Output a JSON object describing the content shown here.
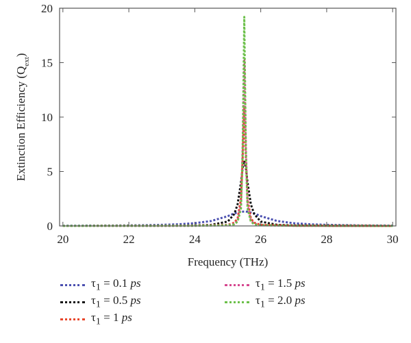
{
  "chart_data": {
    "type": "line",
    "title": "",
    "xlabel": "Frequency (THz)",
    "ylabel": "Extinction Efficiency (Q",
    "ylabel_sub": "ext",
    "ylabel_close": ")",
    "xlim": [
      19.9,
      30.1
    ],
    "ylim": [
      0,
      20
    ],
    "xticks": [
      20,
      22,
      24,
      26,
      28,
      30
    ],
    "yticks": [
      0,
      5,
      10,
      15,
      20
    ],
    "grid": false,
    "legend_position": "bottom",
    "line_style": "dotted",
    "series": [
      {
        "name": "τ1 = 0.1 ps",
        "label_prefix": "τ",
        "label_sub": "1",
        "label_value": " = 0.1 ",
        "label_unit": "ps",
        "color": "#4a4fb0",
        "x": [
          20,
          21,
          22,
          22.5,
          23,
          23.5,
          24,
          24.5,
          25,
          25.2,
          25.4,
          25.5,
          25.6,
          25.8,
          26,
          26.5,
          27,
          27.5,
          28,
          29,
          30
        ],
        "y": [
          0.02,
          0.03,
          0.05,
          0.07,
          0.1,
          0.15,
          0.25,
          0.45,
          0.9,
          1.15,
          1.3,
          1.32,
          1.3,
          1.15,
          0.9,
          0.45,
          0.25,
          0.15,
          0.1,
          0.05,
          0.03
        ]
      },
      {
        "name": "τ1 = 0.5 ps",
        "label_prefix": "τ",
        "label_sub": "1",
        "label_value": " = 0.5 ",
        "label_unit": "ps",
        "color": "#111111",
        "x": [
          20,
          22,
          23,
          24,
          24.5,
          25,
          25.2,
          25.3,
          25.4,
          25.45,
          25.5,
          25.55,
          25.6,
          25.7,
          25.8,
          26,
          26.5,
          27,
          28,
          30
        ],
        "y": [
          0,
          0.01,
          0.02,
          0.05,
          0.1,
          0.4,
          1.1,
          2.0,
          4.0,
          5.3,
          6.0,
          5.3,
          4.0,
          2.0,
          1.1,
          0.4,
          0.1,
          0.05,
          0.02,
          0
        ]
      },
      {
        "name": "τ1 = 1 ps",
        "label_prefix": "τ",
        "label_sub": "1",
        "label_value": " = 1 ",
        "label_unit": "ps",
        "color": "#e8452a",
        "x": [
          20,
          23,
          24,
          25,
          25.2,
          25.3,
          25.4,
          25.45,
          25.5,
          25.55,
          25.6,
          25.7,
          25.8,
          26,
          27,
          30
        ],
        "y": [
          0,
          0.01,
          0.03,
          0.1,
          0.3,
          0.7,
          2.5,
          6.0,
          10.8,
          6.0,
          2.5,
          0.7,
          0.3,
          0.1,
          0.02,
          0
        ]
      },
      {
        "name": "τ1 = 1.5 ps",
        "label_prefix": "τ",
        "label_sub": "1",
        "label_value": " = 1.5 ",
        "label_unit": "ps",
        "color": "#d6478f",
        "x": [
          20,
          23,
          24,
          25,
          25.2,
          25.3,
          25.4,
          25.45,
          25.5,
          25.55,
          25.6,
          25.7,
          25.8,
          26,
          27,
          30
        ],
        "y": [
          0,
          0.01,
          0.02,
          0.08,
          0.2,
          0.5,
          2.0,
          7.0,
          15.3,
          7.0,
          2.0,
          0.5,
          0.2,
          0.08,
          0.02,
          0
        ]
      },
      {
        "name": "τ1 = 2.0 ps",
        "label_prefix": "τ",
        "label_sub": "1",
        "label_value": " = 2.0 ",
        "label_unit": "ps",
        "color": "#6cc04a",
        "x": [
          20,
          23,
          24,
          25,
          25.2,
          25.3,
          25.4,
          25.45,
          25.5,
          25.55,
          25.6,
          25.7,
          25.8,
          26,
          27,
          30
        ],
        "y": [
          0,
          0.01,
          0.02,
          0.06,
          0.15,
          0.4,
          1.6,
          6.5,
          19.2,
          6.5,
          1.6,
          0.4,
          0.15,
          0.06,
          0.02,
          0
        ]
      }
    ]
  }
}
